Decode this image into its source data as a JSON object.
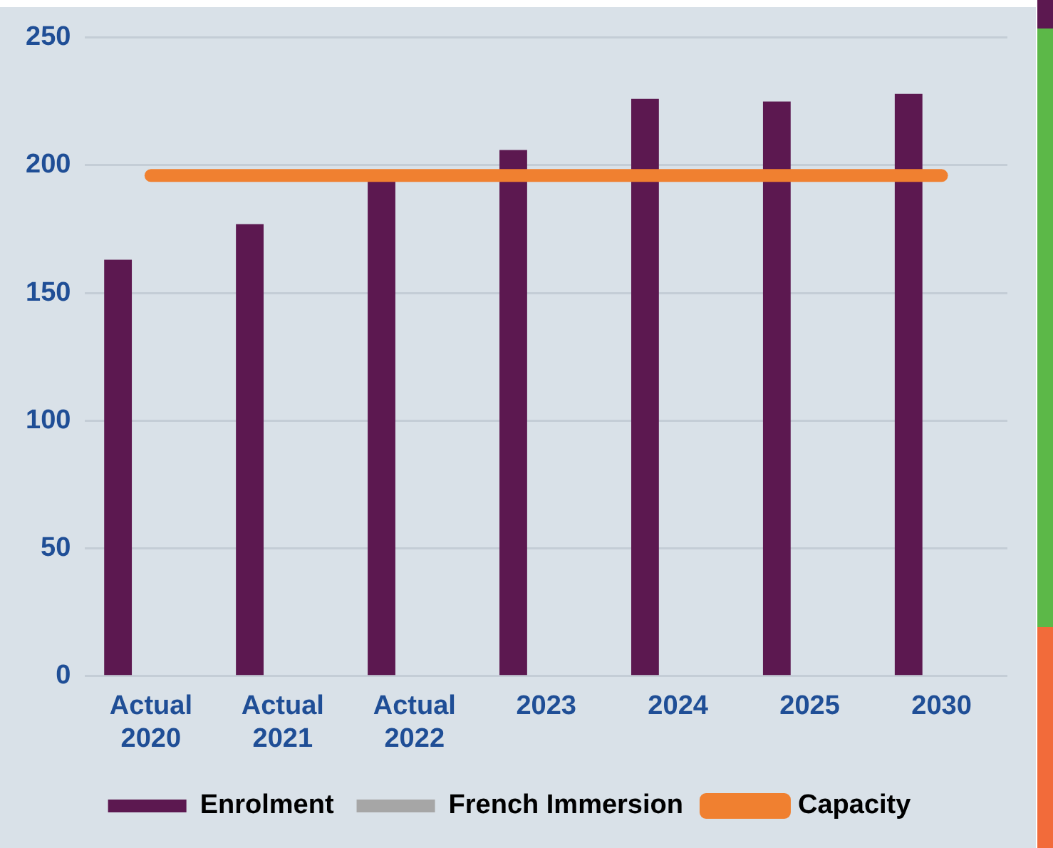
{
  "chart_data": {
    "type": "bar",
    "categories": [
      "Actual 2020",
      "Actual 2021",
      "Actual 2022",
      "2023",
      "2024",
      "2025",
      "2030"
    ],
    "series": [
      {
        "name": "Enrolment",
        "color": "#5c1850",
        "values": [
          163,
          177,
          195,
          206,
          226,
          225,
          228
        ]
      },
      {
        "name": "French Immersion",
        "color": "#a6a6a6",
        "values": [
          null,
          null,
          null,
          null,
          null,
          null,
          null
        ]
      },
      {
        "name": "Capacity",
        "type": "line",
        "color": "#f08030",
        "values": [
          196,
          196,
          196,
          196,
          196,
          196,
          196
        ]
      }
    ],
    "ylim": [
      0,
      250
    ],
    "yticks": [
      0,
      50,
      100,
      150,
      200,
      250
    ],
    "grid": "y",
    "legend": "bottom",
    "marker": "none",
    "line_style": "solid"
  }
}
